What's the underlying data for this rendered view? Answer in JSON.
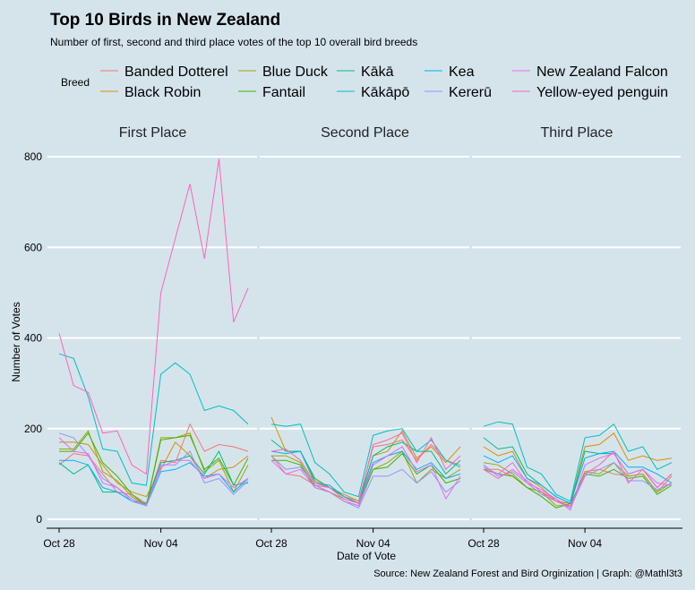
{
  "chart_data": {
    "type": "line",
    "title": "Top 10 Birds in New Zealand",
    "subtitle": "Number of first, second and third place votes of the top 10 overall bird breeds",
    "caption": "Source: New Zealand Forest and Bird Orginization | Graph: @Mathl3t3",
    "xlabel": "Date of Vote",
    "ylabel": "Number of Votes",
    "legend_title": "Breed",
    "legend_position": "top",
    "ylim": [
      0,
      800
    ],
    "y_ticks": [
      0,
      200,
      400,
      600,
      800
    ],
    "x_dates": [
      "Oct 28",
      "Oct 29",
      "Oct 30",
      "Oct 31",
      "Nov 01",
      "Nov 02",
      "Nov 03",
      "Nov 04",
      "Nov 05",
      "Nov 06",
      "Nov 07",
      "Nov 08",
      "Nov 09",
      "Nov 10"
    ],
    "x_tick_labels": [
      "Oct 28",
      "Nov 04"
    ],
    "grid": true,
    "facets": [
      {
        "title": "First Place",
        "series": [
          {
            "name": "Banded Dotterel",
            "color": "#F8766D",
            "values": [
              120,
              145,
              140,
              100,
              60,
              55,
              35,
              130,
              125,
              210,
              150,
              165,
              160,
              150
            ]
          },
          {
            "name": "Black Robin",
            "color": "#D89000",
            "values": [
              170,
              170,
              165,
              120,
              80,
              60,
              50,
              110,
              170,
              140,
              90,
              110,
              115,
              140
            ]
          },
          {
            "name": "Blue Duck",
            "color": "#A3A500",
            "values": [
              155,
              155,
              195,
              105,
              85,
              50,
              30,
              180,
              180,
              190,
              105,
              130,
              60,
              120
            ]
          },
          {
            "name": "Fantail",
            "color": "#39B600",
            "values": [
              150,
              150,
              190,
              125,
              95,
              55,
              30,
              175,
              180,
              185,
              110,
              135,
              75,
              135
            ]
          },
          {
            "name": "Kākā",
            "color": "#00BF7D",
            "values": [
              125,
              100,
              120,
              60,
              60,
              40,
              35,
              125,
              130,
              140,
              100,
              150,
              75,
              80
            ]
          },
          {
            "name": "Kākāpō",
            "color": "#00BFC4",
            "values": [
              365,
              355,
              270,
              155,
              150,
              80,
              75,
              320,
              345,
              320,
              240,
              250,
              240,
              210
            ]
          },
          {
            "name": "Kea",
            "color": "#00B0F6",
            "values": [
              130,
              130,
              120,
              70,
              60,
              40,
              30,
              105,
              110,
              125,
              95,
              100,
              60,
              90
            ]
          },
          {
            "name": "Kererū",
            "color": "#9590FF",
            "values": [
              190,
              180,
              140,
              90,
              70,
              40,
              30,
              120,
              120,
              150,
              80,
              90,
              55,
              85
            ]
          },
          {
            "name": "New Zealand Falcon",
            "color": "#E76BF3",
            "values": [
              180,
              150,
              145,
              80,
              70,
              45,
              30,
              115,
              130,
              130,
              90,
              100,
              70,
              90
            ]
          },
          {
            "name": "Yellow-eyed penguin",
            "color": "#FF62BC",
            "values": [
              410,
              295,
              280,
              190,
              195,
              120,
              100,
              500,
              620,
              740,
              575,
              795,
              435,
              510
            ]
          }
        ]
      },
      {
        "title": "Second Place",
        "series": [
          {
            "name": "Banded Dotterel",
            "color": "#F8766D",
            "values": [
              140,
              100,
              95,
              75,
              70,
              50,
              40,
              160,
              165,
              175,
              130,
              165,
              130,
              120
            ]
          },
          {
            "name": "Black Robin",
            "color": "#D89000",
            "values": [
              225,
              150,
              150,
              85,
              70,
              55,
              40,
              140,
              150,
              195,
              135,
              160,
              125,
              160
            ]
          },
          {
            "name": "Blue Duck",
            "color": "#A3A500",
            "values": [
              140,
              140,
              125,
              75,
              60,
              45,
              35,
              110,
              125,
              150,
              80,
              110,
              90,
              110
            ]
          },
          {
            "name": "Fantail",
            "color": "#39B600",
            "values": [
              130,
              130,
              120,
              70,
              60,
              40,
              30,
              110,
              115,
              145,
              100,
              120,
              80,
              90
            ]
          },
          {
            "name": "Kākā",
            "color": "#00BF7D",
            "values": [
              175,
              150,
              150,
              90,
              70,
              50,
              35,
              140,
              160,
              170,
              150,
              150,
              100,
              130
            ]
          },
          {
            "name": "Kākāpō",
            "color": "#00BFC4",
            "values": [
              210,
              205,
              210,
              125,
              100,
              60,
              50,
              185,
              195,
              200,
              150,
              175,
              130,
              115
            ]
          },
          {
            "name": "Kea",
            "color": "#00B0F6",
            "values": [
              150,
              145,
              150,
              80,
              75,
              50,
              35,
              125,
              140,
              150,
              110,
              125,
              90,
              100
            ]
          },
          {
            "name": "Kererū",
            "color": "#9590FF",
            "values": [
              140,
              110,
              115,
              75,
              60,
              40,
              25,
              95,
              95,
              110,
              80,
              105,
              60,
              85
            ]
          },
          {
            "name": "New Zealand Falcon",
            "color": "#E76BF3",
            "values": [
              130,
              100,
              110,
              70,
              60,
              40,
              30,
              120,
              140,
              160,
              105,
              120,
              45,
              95
            ]
          },
          {
            "name": "Yellow-eyed penguin",
            "color": "#FF62BC",
            "values": [
              150,
              155,
              130,
              80,
              70,
              45,
              35,
              165,
              175,
              190,
              125,
              180,
              110,
              140
            ]
          }
        ]
      },
      {
        "title": "Third Place",
        "series": [
          {
            "name": "Banded Dotterel",
            "color": "#F8766D",
            "values": [
              110,
              110,
              95,
              70,
              60,
              45,
              25,
              105,
              110,
              100,
              95,
              100,
              60,
              95
            ]
          },
          {
            "name": "Black Robin",
            "color": "#D89000",
            "values": [
              160,
              140,
              150,
              90,
              70,
              40,
              35,
              160,
              165,
              190,
              130,
              140,
              130,
              135
            ]
          },
          {
            "name": "Blue Duck",
            "color": "#A3A500",
            "values": [
              125,
              120,
              100,
              70,
              60,
              30,
              30,
              105,
              100,
              125,
              95,
              100,
              60,
              80
            ]
          },
          {
            "name": "Fantail",
            "color": "#39B600",
            "values": [
              110,
              100,
              95,
              70,
              50,
              25,
              35,
              100,
              95,
              110,
              90,
              95,
              55,
              75
            ]
          },
          {
            "name": "Kākā",
            "color": "#00BF7D",
            "values": [
              180,
              155,
              160,
              100,
              75,
              50,
              35,
              150,
              145,
              145,
              100,
              110,
              70,
              100
            ]
          },
          {
            "name": "Kākāpō",
            "color": "#00BFC4",
            "values": [
              205,
              215,
              210,
              115,
              100,
              55,
              40,
              180,
              185,
              210,
              150,
              160,
              110,
              125
            ]
          },
          {
            "name": "Kea",
            "color": "#00B0F6",
            "values": [
              140,
              125,
              140,
              90,
              75,
              50,
              35,
              135,
              145,
              150,
              115,
              115,
              100,
              80
            ]
          },
          {
            "name": "Kererū",
            "color": "#9590FF",
            "values": [
              120,
              95,
              105,
              80,
              55,
              40,
              25,
              95,
              110,
              125,
              85,
              85,
              65,
              80
            ]
          },
          {
            "name": "New Zealand Falcon",
            "color": "#E76BF3",
            "values": [
              115,
              100,
              125,
              80,
              65,
              45,
              20,
              120,
              135,
              145,
              100,
              110,
              80,
              75
            ]
          },
          {
            "name": "Yellow-eyed penguin",
            "color": "#FF62BC",
            "values": [
              110,
              90,
              110,
              85,
              60,
              40,
              30,
              100,
              120,
              150,
              80,
              110,
              70,
              100
            ]
          }
        ]
      }
    ]
  }
}
